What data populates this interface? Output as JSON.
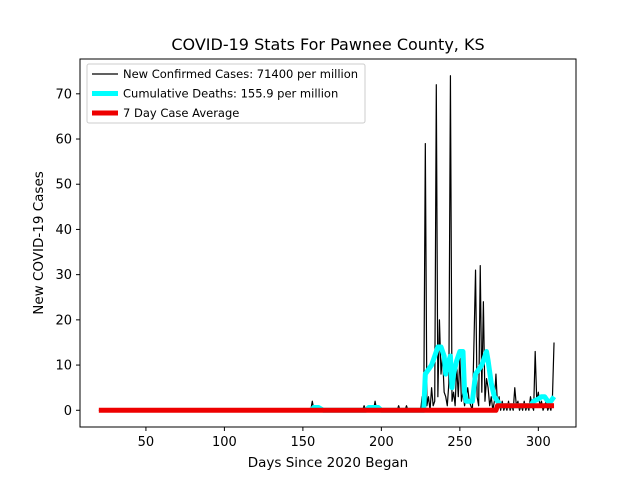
{
  "chart_data": {
    "type": "line",
    "title": "COVID-19 Stats For Pawnee County, KS",
    "xlabel": "Days Since 2020 Began",
    "ylabel": "New COVID-19 Cases",
    "xlim": [
      8,
      324
    ],
    "ylim": [
      -3.7,
      77.7
    ],
    "xticks": [
      50,
      100,
      150,
      200,
      250,
      300
    ],
    "yticks": [
      0,
      10,
      20,
      30,
      40,
      50,
      60,
      70
    ],
    "grid": false,
    "legend_position": "top-left",
    "series": [
      {
        "name": "New Confirmed Cases: 71400 per million",
        "color": "#000000",
        "style": "thin",
        "points": [
          [
            20,
            0
          ],
          [
            150,
            0
          ],
          [
            155,
            0
          ],
          [
            156,
            2
          ],
          [
            157,
            0
          ],
          [
            188,
            0
          ],
          [
            189,
            1
          ],
          [
            190,
            0
          ],
          [
            195,
            0
          ],
          [
            196,
            2
          ],
          [
            197,
            0
          ],
          [
            205,
            0
          ],
          [
            210,
            0
          ],
          [
            211,
            1
          ],
          [
            212,
            0
          ],
          [
            215,
            0
          ],
          [
            216,
            1
          ],
          [
            217,
            0
          ],
          [
            225,
            0
          ],
          [
            226,
            3
          ],
          [
            227,
            0
          ],
          [
            228,
            59
          ],
          [
            229,
            1
          ],
          [
            230,
            3
          ],
          [
            231,
            0
          ],
          [
            232,
            5
          ],
          [
            233,
            1
          ],
          [
            234,
            2
          ],
          [
            235,
            72
          ],
          [
            236,
            3
          ],
          [
            237,
            20
          ],
          [
            238,
            8
          ],
          [
            239,
            12
          ],
          [
            240,
            4
          ],
          [
            241,
            3
          ],
          [
            242,
            1
          ],
          [
            243,
            6
          ],
          [
            244,
            74
          ],
          [
            245,
            2
          ],
          [
            246,
            4
          ],
          [
            247,
            1
          ],
          [
            248,
            10
          ],
          [
            249,
            3
          ],
          [
            250,
            12
          ],
          [
            251,
            2
          ],
          [
            252,
            4
          ],
          [
            253,
            1
          ],
          [
            254,
            3
          ],
          [
            255,
            5
          ],
          [
            256,
            2
          ],
          [
            257,
            1
          ],
          [
            258,
            0
          ],
          [
            259,
            15
          ],
          [
            260,
            31
          ],
          [
            261,
            3
          ],
          [
            262,
            1
          ],
          [
            263,
            32
          ],
          [
            264,
            4
          ],
          [
            265,
            24
          ],
          [
            266,
            2
          ],
          [
            267,
            7
          ],
          [
            268,
            5
          ],
          [
            269,
            1
          ],
          [
            270,
            3
          ],
          [
            271,
            0
          ],
          [
            272,
            2
          ],
          [
            273,
            8
          ],
          [
            274,
            1
          ],
          [
            275,
            3
          ],
          [
            276,
            0
          ],
          [
            277,
            2
          ],
          [
            278,
            0
          ],
          [
            279,
            1
          ],
          [
            280,
            0
          ],
          [
            281,
            2
          ],
          [
            282,
            0
          ],
          [
            283,
            1
          ],
          [
            284,
            0
          ],
          [
            285,
            5
          ],
          [
            286,
            1
          ],
          [
            287,
            2
          ],
          [
            288,
            0
          ],
          [
            289,
            1
          ],
          [
            290,
            0
          ],
          [
            291,
            2
          ],
          [
            292,
            0
          ],
          [
            293,
            1
          ],
          [
            294,
            0
          ],
          [
            295,
            3
          ],
          [
            296,
            1
          ],
          [
            297,
            0
          ],
          [
            298,
            13
          ],
          [
            299,
            2
          ],
          [
            300,
            4
          ],
          [
            301,
            1
          ],
          [
            302,
            2
          ],
          [
            303,
            0
          ],
          [
            304,
            1
          ],
          [
            305,
            2
          ],
          [
            306,
            0
          ],
          [
            307,
            1
          ],
          [
            308,
            0
          ],
          [
            309,
            3
          ],
          [
            310,
            15
          ]
        ]
      },
      {
        "name": "Cumulative Deaths: 155.9 per million",
        "color": "#00ffff",
        "style": "thick",
        "points": [
          [
            155,
            0
          ],
          [
            157,
            0.6
          ],
          [
            160,
            0.6
          ],
          [
            163,
            0
          ],
          [
            190,
            0
          ],
          [
            192,
            0.6
          ],
          [
            198,
            0.6
          ],
          [
            200,
            0
          ],
          [
            227,
            0
          ],
          [
            228,
            8
          ],
          [
            230,
            9
          ],
          [
            232,
            10
          ],
          [
            234,
            12
          ],
          [
            236,
            14
          ],
          [
            238,
            14
          ],
          [
            240,
            12
          ],
          [
            241,
            8
          ],
          [
            242,
            10
          ],
          [
            244,
            12
          ],
          [
            245,
            5
          ],
          [
            246,
            8
          ],
          [
            248,
            11
          ],
          [
            250,
            13
          ],
          [
            252,
            13
          ],
          [
            253,
            4
          ],
          [
            254,
            2
          ],
          [
            256,
            2
          ],
          [
            258,
            2
          ],
          [
            260,
            8
          ],
          [
            262,
            9
          ],
          [
            264,
            10
          ],
          [
            266,
            12
          ],
          [
            267,
            13
          ],
          [
            268,
            11
          ],
          [
            270,
            6
          ],
          [
            272,
            3
          ],
          [
            274,
            2
          ],
          [
            276,
            1
          ],
          [
            278,
            1
          ],
          [
            290,
            1
          ],
          [
            295,
            1
          ],
          [
            297,
            2
          ],
          [
            300,
            2.5
          ],
          [
            302,
            3
          ],
          [
            304,
            3
          ],
          [
            306,
            2
          ],
          [
            308,
            2
          ],
          [
            310,
            3
          ]
        ]
      },
      {
        "name": "7 Day Case Average",
        "color": "#ee0000",
        "style": "thick",
        "points": [
          [
            20,
            0
          ],
          [
            270,
            0
          ],
          [
            273,
            0
          ],
          [
            274,
            1
          ],
          [
            276,
            1
          ],
          [
            310,
            1
          ]
        ]
      }
    ]
  }
}
